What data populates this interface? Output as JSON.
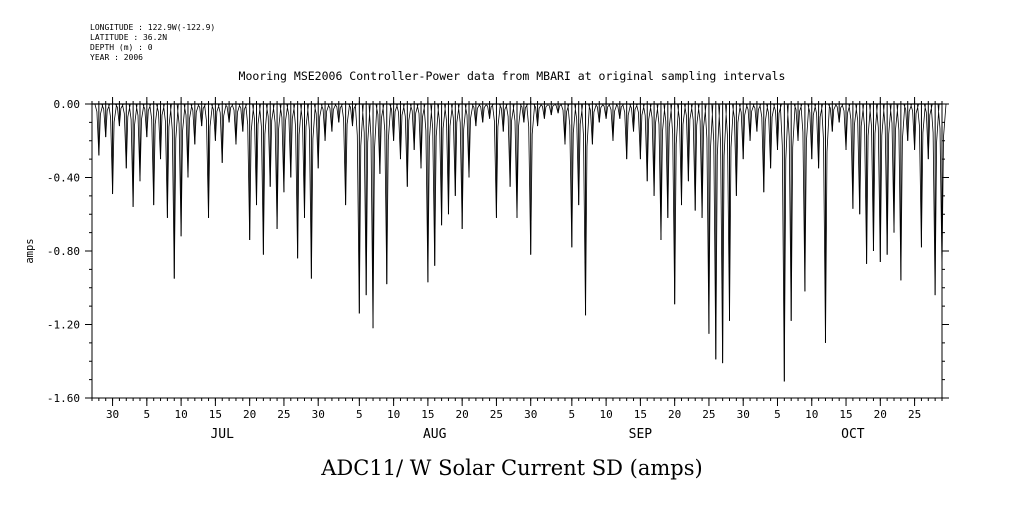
{
  "meta": {
    "longitude": "LONGITUDE : 122.9W(-122.9)",
    "latitude": "LATITUDE : 36.2N",
    "depth": "DEPTH (m) : 0",
    "year": "YEAR : 2006"
  },
  "chart_data": {
    "type": "line",
    "title": "Mooring MSE2006 Controller-Power data from MBARI at original sampling intervals",
    "ylabel": "amps",
    "xlabel": "ADC11/ W Solar Current SD (amps)",
    "ylim": [
      -1.6,
      0.0
    ],
    "yticks": [
      "0.00",
      "-0.40",
      "-0.80",
      "-1.20",
      "-1.60"
    ],
    "ytick_values": [
      0.0,
      -0.4,
      -0.8,
      -1.2,
      -1.6
    ],
    "xlim": [
      "2006-06-27",
      "2006-10-29"
    ],
    "xticks": [
      {
        "label": "30",
        "date": "2006-06-30"
      },
      {
        "label": "5",
        "date": "2006-07-05"
      },
      {
        "label": "10",
        "date": "2006-07-10"
      },
      {
        "label": "15",
        "date": "2006-07-15"
      },
      {
        "label": "20",
        "date": "2006-07-20"
      },
      {
        "label": "25",
        "date": "2006-07-25"
      },
      {
        "label": "30",
        "date": "2006-07-30"
      },
      {
        "label": "5",
        "date": "2006-08-05"
      },
      {
        "label": "10",
        "date": "2006-08-10"
      },
      {
        "label": "15",
        "date": "2006-08-15"
      },
      {
        "label": "20",
        "date": "2006-08-20"
      },
      {
        "label": "25",
        "date": "2006-08-25"
      },
      {
        "label": "30",
        "date": "2006-08-30"
      },
      {
        "label": "5",
        "date": "2006-09-05"
      },
      {
        "label": "10",
        "date": "2006-09-10"
      },
      {
        "label": "15",
        "date": "2006-09-15"
      },
      {
        "label": "20",
        "date": "2006-09-20"
      },
      {
        "label": "25",
        "date": "2006-09-25"
      },
      {
        "label": "30",
        "date": "2006-09-30"
      },
      {
        "label": "5",
        "date": "2006-10-05"
      },
      {
        "label": "10",
        "date": "2006-10-10"
      },
      {
        "label": "15",
        "date": "2006-10-15"
      },
      {
        "label": "20",
        "date": "2006-10-20"
      },
      {
        "label": "25",
        "date": "2006-10-25"
      }
    ],
    "months": [
      {
        "label": "JUL",
        "date": "2006-07-16"
      },
      {
        "label": "AUG",
        "date": "2006-08-16"
      },
      {
        "label": "SEP",
        "date": "2006-09-15"
      },
      {
        "label": "OCT",
        "date": "2006-10-16"
      }
    ],
    "grid": false,
    "series": [
      {
        "color": "#000000",
        "spikes": [
          [
            "2006-06-28",
            -0.28
          ],
          [
            "2006-06-29",
            -0.18
          ],
          [
            "2006-06-30",
            -0.49
          ],
          [
            "2006-07-01",
            -0.12
          ],
          [
            "2006-07-02",
            -0.35
          ],
          [
            "2006-07-03",
            -0.56
          ],
          [
            "2006-07-04",
            -0.42
          ],
          [
            "2006-07-05",
            -0.18
          ],
          [
            "2006-07-06",
            -0.55
          ],
          [
            "2006-07-07",
            -0.3
          ],
          [
            "2006-07-08",
            -0.62
          ],
          [
            "2006-07-09",
            -0.95
          ],
          [
            "2006-07-10",
            -0.72
          ],
          [
            "2006-07-11",
            -0.4
          ],
          [
            "2006-07-12",
            -0.22
          ],
          [
            "2006-07-13",
            -0.12
          ],
          [
            "2006-07-14",
            -0.62
          ],
          [
            "2006-07-15",
            -0.2
          ],
          [
            "2006-07-16",
            -0.32
          ],
          [
            "2006-07-17",
            -0.1
          ],
          [
            "2006-07-18",
            -0.22
          ],
          [
            "2006-07-19",
            -0.15
          ],
          [
            "2006-07-20",
            -0.74
          ],
          [
            "2006-07-21",
            -0.55
          ],
          [
            "2006-07-22",
            -0.82
          ],
          [
            "2006-07-23",
            -0.45
          ],
          [
            "2006-07-24",
            -0.68
          ],
          [
            "2006-07-25",
            -0.48
          ],
          [
            "2006-07-26",
            -0.4
          ],
          [
            "2006-07-27",
            -0.84
          ],
          [
            "2006-07-28",
            -0.62
          ],
          [
            "2006-07-29",
            -0.95
          ],
          [
            "2006-07-30",
            -0.35
          ],
          [
            "2006-07-31",
            -0.2
          ],
          [
            "2006-08-01",
            -0.15
          ],
          [
            "2006-08-02",
            -0.1
          ],
          [
            "2006-08-03",
            -0.55
          ],
          [
            "2006-08-04",
            -0.12
          ],
          [
            "2006-08-05",
            -1.14
          ],
          [
            "2006-08-06",
            -1.04
          ],
          [
            "2006-08-07",
            -1.22
          ],
          [
            "2006-08-08",
            -0.38
          ],
          [
            "2006-08-09",
            -0.98
          ],
          [
            "2006-08-10",
            -0.2
          ],
          [
            "2006-08-11",
            -0.3
          ],
          [
            "2006-08-12",
            -0.45
          ],
          [
            "2006-08-13",
            -0.25
          ],
          [
            "2006-08-14",
            -0.35
          ],
          [
            "2006-08-15",
            -0.97
          ],
          [
            "2006-08-16",
            -0.88
          ],
          [
            "2006-08-17",
            -0.66
          ],
          [
            "2006-08-18",
            -0.6
          ],
          [
            "2006-08-19",
            -0.5
          ],
          [
            "2006-08-20",
            -0.68
          ],
          [
            "2006-08-21",
            -0.4
          ],
          [
            "2006-08-22",
            -0.12
          ],
          [
            "2006-08-23",
            -0.1
          ],
          [
            "2006-08-24",
            -0.08
          ],
          [
            "2006-08-25",
            -0.62
          ],
          [
            "2006-08-26",
            -0.15
          ],
          [
            "2006-08-27",
            -0.45
          ],
          [
            "2006-08-28",
            -0.62
          ],
          [
            "2006-08-29",
            -0.1
          ],
          [
            "2006-08-30",
            -0.82
          ],
          [
            "2006-08-31",
            -0.12
          ],
          [
            "2006-09-01",
            -0.08
          ],
          [
            "2006-09-02",
            -0.06
          ],
          [
            "2006-09-03",
            -0.05
          ],
          [
            "2006-09-04",
            -0.22
          ],
          [
            "2006-09-05",
            -0.78
          ],
          [
            "2006-09-06",
            -0.55
          ],
          [
            "2006-09-07",
            -1.15
          ],
          [
            "2006-09-08",
            -0.22
          ],
          [
            "2006-09-09",
            -0.1
          ],
          [
            "2006-09-10",
            -0.08
          ],
          [
            "2006-09-11",
            -0.2
          ],
          [
            "2006-09-12",
            -0.08
          ],
          [
            "2006-09-13",
            -0.3
          ],
          [
            "2006-09-14",
            -0.15
          ],
          [
            "2006-09-15",
            -0.3
          ],
          [
            "2006-09-16",
            -0.42
          ],
          [
            "2006-09-17",
            -0.5
          ],
          [
            "2006-09-18",
            -0.74
          ],
          [
            "2006-09-19",
            -0.62
          ],
          [
            "2006-09-20",
            -1.09
          ],
          [
            "2006-09-21",
            -0.55
          ],
          [
            "2006-09-22",
            -0.42
          ],
          [
            "2006-09-23",
            -0.58
          ],
          [
            "2006-09-24",
            -0.62
          ],
          [
            "2006-09-25",
            -1.25
          ],
          [
            "2006-09-26",
            -1.39
          ],
          [
            "2006-09-27",
            -1.41
          ],
          [
            "2006-09-28",
            -1.18
          ],
          [
            "2006-09-29",
            -0.5
          ],
          [
            "2006-09-30",
            -0.3
          ],
          [
            "2006-10-01",
            -0.2
          ],
          [
            "2006-10-02",
            -0.15
          ],
          [
            "2006-10-03",
            -0.48
          ],
          [
            "2006-10-04",
            -0.35
          ],
          [
            "2006-10-05",
            -0.25
          ],
          [
            "2006-10-06",
            -1.51
          ],
          [
            "2006-10-07",
            -1.18
          ],
          [
            "2006-10-08",
            -0.2
          ],
          [
            "2006-10-09",
            -1.02
          ],
          [
            "2006-10-10",
            -0.3
          ],
          [
            "2006-10-11",
            -0.35
          ],
          [
            "2006-10-12",
            -1.3
          ],
          [
            "2006-10-13",
            -0.15
          ],
          [
            "2006-10-14",
            -0.1
          ],
          [
            "2006-10-15",
            -0.25
          ],
          [
            "2006-10-16",
            -0.57
          ],
          [
            "2006-10-17",
            -0.6
          ],
          [
            "2006-10-18",
            -0.87
          ],
          [
            "2006-10-19",
            -0.8
          ],
          [
            "2006-10-20",
            -0.86
          ],
          [
            "2006-10-21",
            -0.82
          ],
          [
            "2006-10-22",
            -0.7
          ],
          [
            "2006-10-23",
            -0.96
          ],
          [
            "2006-10-24",
            -0.2
          ],
          [
            "2006-10-25",
            -0.25
          ],
          [
            "2006-10-26",
            -0.78
          ],
          [
            "2006-10-27",
            -0.3
          ],
          [
            "2006-10-28",
            -1.04
          ],
          [
            "2006-10-29",
            -0.9
          ]
        ]
      }
    ]
  }
}
